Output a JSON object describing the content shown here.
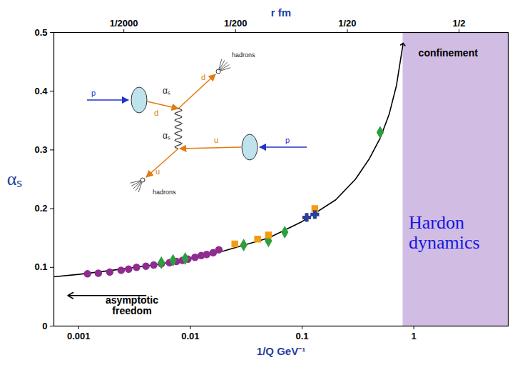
{
  "chart_data": {
    "type": "scatter",
    "x_label": "1/Q GeV⁻¹",
    "x2_label": "r fm",
    "y_label": "αₛ",
    "log": "x",
    "xlim": [
      0.0006,
      7
    ],
    "xticks": [
      0.001,
      0.01,
      0.1,
      1
    ],
    "x2ticks": [
      {
        "value": 0.00254,
        "label": "1/2000"
      },
      {
        "value": 0.0254,
        "label": "1/200"
      },
      {
        "value": 0.254,
        "label": "1/20"
      },
      {
        "value": 2.54,
        "label": "1/2"
      }
    ],
    "ylim": [
      0,
      0.5
    ],
    "yticks": [
      0,
      0.1,
      0.2,
      0.3,
      0.4,
      0.5
    ],
    "series": [
      {
        "color": "#8e2c90",
        "marker": "circle",
        "x": [
          0.0012,
          0.0015,
          0.0019,
          0.0024,
          0.0028,
          0.0033,
          0.004,
          0.0047,
          0.0055,
          0.0065,
          0.0075,
          0.0085,
          0.0095,
          0.011,
          0.0125,
          0.014,
          0.016,
          0.018
        ],
        "y": [
          0.089,
          0.09,
          0.092,
          0.095,
          0.097,
          0.1,
          0.102,
          0.104,
          0.106,
          0.108,
          0.11,
          0.112,
          0.114,
          0.117,
          0.12,
          0.122,
          0.125,
          0.13
        ]
      },
      {
        "color": "#2e9e3e",
        "marker": "diamond",
        "x": [
          0.0055,
          0.007,
          0.009,
          0.03,
          0.05,
          0.07,
          0.5
        ],
        "y": [
          0.108,
          0.112,
          0.115,
          0.138,
          0.145,
          0.16,
          0.33
        ]
      },
      {
        "color": "#f39c12",
        "marker": "square",
        "x": [
          0.025,
          0.04,
          0.05,
          0.13
        ],
        "y": [
          0.14,
          0.148,
          0.155,
          0.2
        ]
      },
      {
        "color": "#2a3f9a",
        "marker": "cross",
        "x": [
          0.11,
          0.13
        ],
        "y": [
          0.185,
          0.19
        ]
      }
    ],
    "curve": {
      "color": "#000000",
      "x": [
        0.0006,
        0.001,
        0.002,
        0.005,
        0.01,
        0.02,
        0.05,
        0.1,
        0.2,
        0.3,
        0.4,
        0.5,
        0.6,
        0.7,
        0.8
      ],
      "y": [
        0.084,
        0.088,
        0.095,
        0.105,
        0.115,
        0.128,
        0.15,
        0.178,
        0.215,
        0.25,
        0.285,
        0.32,
        0.36,
        0.41,
        0.48
      ]
    },
    "shaded_region": {
      "x": [
        0.8,
        7
      ],
      "color": "#c9b1de",
      "text": "Hardon dynamics",
      "text_x": 0.9,
      "text_y": 0.16
    },
    "annotations": [
      {
        "text": "asymptotic freedom",
        "x": 0.003,
        "y": 0.035
      },
      {
        "text": "confinement",
        "x": 1.1,
        "y": 0.465
      }
    ],
    "arrows": [
      {
        "from": [
          0.004,
          0.052
        ],
        "to": [
          0.0008,
          0.052
        ]
      }
    ],
    "inset_diagram": {
      "labels": [
        "p",
        "d",
        "d",
        "αₛ",
        "αₛ",
        "u",
        "u",
        "p",
        "hadrons",
        "hadrons"
      ]
    }
  }
}
